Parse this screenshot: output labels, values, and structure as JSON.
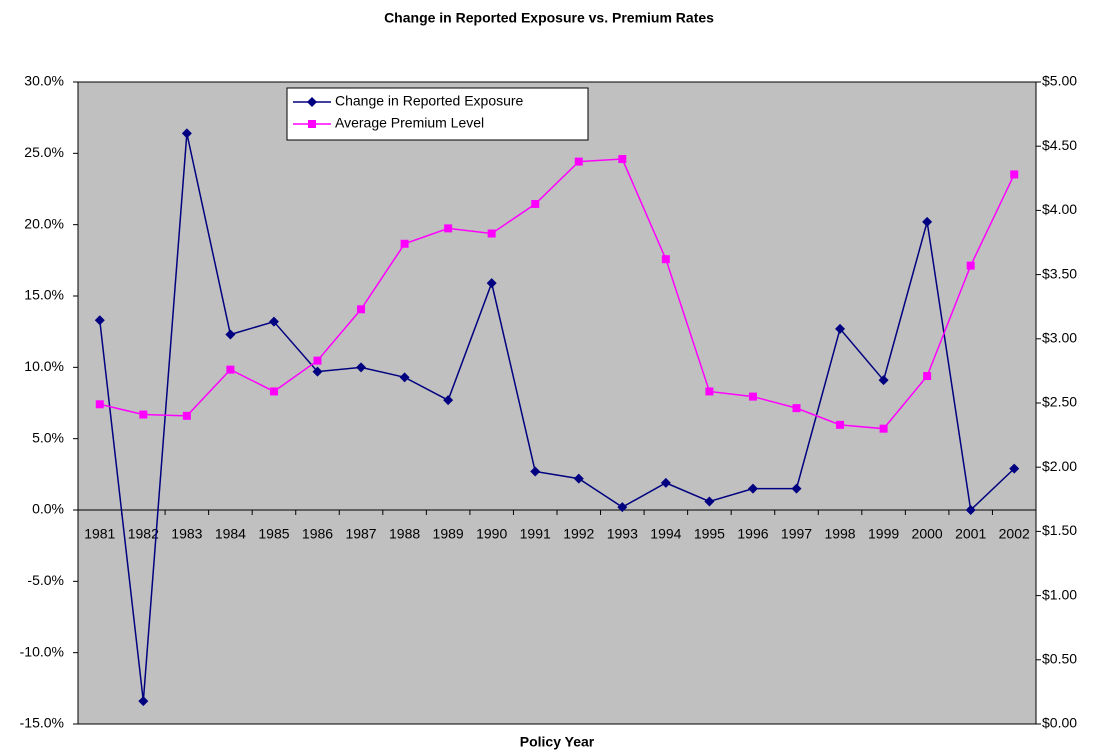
{
  "chart_data": {
    "type": "line",
    "title": "Change in Reported Exposure vs. Premium Rates",
    "x_label": "Policy Year",
    "categories": [
      "1981",
      "1982",
      "1983",
      "1984",
      "1985",
      "1986",
      "1987",
      "1988",
      "1989",
      "1990",
      "1991",
      "1992",
      "1993",
      "1994",
      "1995",
      "1996",
      "1997",
      "1998",
      "1999",
      "2000",
      "2001",
      "2002"
    ],
    "series": [
      {
        "name": "Change in Reported Exposure",
        "color": "#000080",
        "marker": "diamond",
        "values": [
          13.3,
          -13.4,
          26.4,
          12.3,
          13.2,
          9.7,
          10.0,
          9.3,
          7.7,
          15.9,
          2.7,
          2.2,
          0.2,
          1.9,
          0.6,
          1.5,
          1.5,
          12.7,
          9.1,
          20.2,
          0.0,
          2.9
        ]
      },
      {
        "name": "Average Premium Level",
        "color": "#ff00ff",
        "marker": "square",
        "axis": "y2",
        "values": [
          2.49,
          2.41,
          2.4,
          2.76,
          2.59,
          2.83,
          3.23,
          3.74,
          3.86,
          3.82,
          4.05,
          4.38,
          4.4,
          3.62,
          2.59,
          2.55,
          2.46,
          2.33,
          2.3,
          2.71,
          3.57,
          4.28
        ]
      }
    ],
    "ylim": [
      -15,
      30
    ],
    "yticks": [
      {
        "value": -15,
        "label": "-15.0%"
      },
      {
        "value": -10,
        "label": "-10.0%"
      },
      {
        "value": -5,
        "label": "-5.0%"
      },
      {
        "value": 0,
        "label": "0.0%"
      },
      {
        "value": 5,
        "label": "5.0%"
      },
      {
        "value": 10,
        "label": "10.0%"
      },
      {
        "value": 15,
        "label": "15.0%"
      },
      {
        "value": 20,
        "label": "20.0%"
      },
      {
        "value": 25,
        "label": "25.0%"
      },
      {
        "value": 30,
        "label": "30.0%"
      }
    ],
    "y2lim": [
      0,
      5
    ],
    "y2ticks": [
      {
        "value": 0,
        "label": "$0.00"
      },
      {
        "value": 0.5,
        "label": "$0.50"
      },
      {
        "value": 1,
        "label": "$1.00"
      },
      {
        "value": 1.5,
        "label": "$1.50"
      },
      {
        "value": 2,
        "label": "$2.00"
      },
      {
        "value": 2.5,
        "label": "$2.50"
      },
      {
        "value": 3,
        "label": "$3.00"
      },
      {
        "value": 3.5,
        "label": "$3.50"
      },
      {
        "value": 4,
        "label": "$4.00"
      },
      {
        "value": 4.5,
        "label": "$4.50"
      },
      {
        "value": 5,
        "label": "$5.00"
      }
    ],
    "grid": false,
    "legend": "top-left",
    "plot_background": "#c0c0c0"
  }
}
